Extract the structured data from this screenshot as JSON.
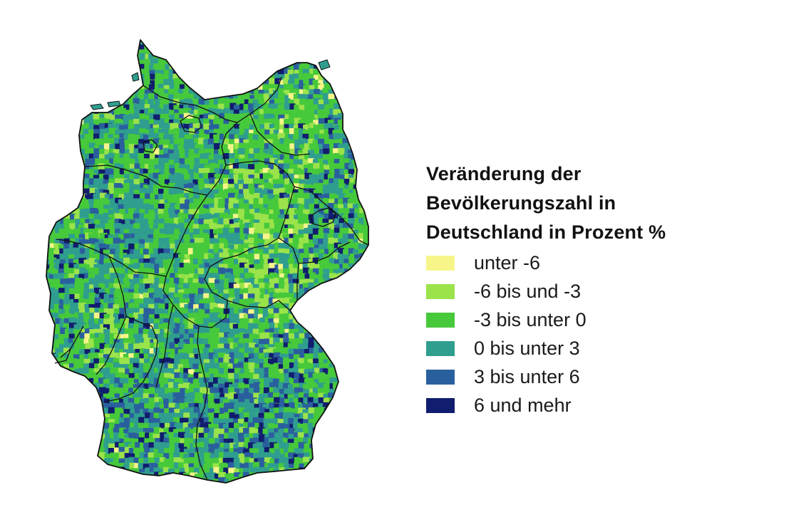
{
  "map": {
    "region": "Deutschland",
    "legend": {
      "title_lines": [
        "Veränderung der",
        "Bevölkerungszahl in",
        "Deutschland in Prozent %"
      ],
      "classes": [
        {
          "label": "unter -6",
          "color": "#f7f58a"
        },
        {
          "label": "-6 bis und -3",
          "color": "#9be34a"
        },
        {
          "label": "-3 bis unter 0",
          "color": "#46c93b"
        },
        {
          "label": "0 bis unter 3",
          "color": "#2f9e8f"
        },
        {
          "label": "3 bis unter 6",
          "color": "#2a5f9e"
        },
        {
          "label": "6 und mehr",
          "color": "#111d6e"
        }
      ]
    },
    "colors": {
      "border": "#111111",
      "background": "#ffffff"
    }
  }
}
